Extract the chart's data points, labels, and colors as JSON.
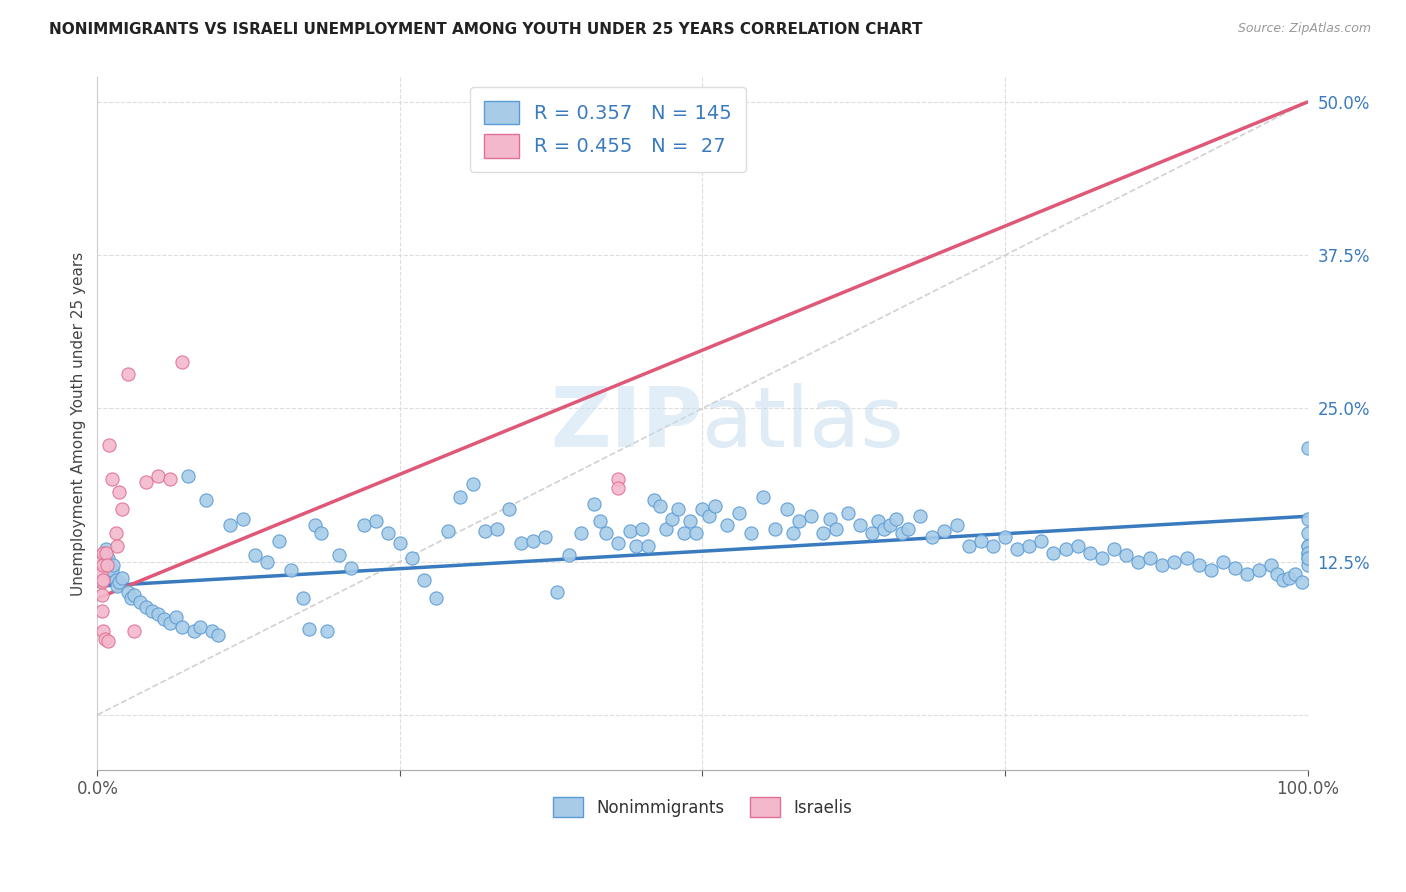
{
  "title": "NONIMMIGRANTS VS ISRAELI UNEMPLOYMENT AMONG YOUTH UNDER 25 YEARS CORRELATION CHART",
  "source": "Source: ZipAtlas.com",
  "ylabel_label": "Unemployment Among Youth under 25 years",
  "ylabel_ticks": [
    0.0,
    0.125,
    0.25,
    0.375,
    0.5
  ],
  "ylabel_tick_labels": [
    "",
    "12.5%",
    "25.0%",
    "37.5%",
    "50.0%"
  ],
  "watermark": "ZIPatlas",
  "legend_blue_R": 0.357,
  "legend_blue_N": 145,
  "legend_pink_R": 0.455,
  "legend_pink_N": 27,
  "legend_label_blue": "Nonimmigrants",
  "legend_label_pink": "Israelis",
  "blue_scatter_color": "#a8cce8",
  "blue_edge_color": "#5b9bd5",
  "pink_scatter_color": "#f4b8cd",
  "pink_edge_color": "#e07090",
  "trend_blue_color": "#3a7bbf",
  "trend_pink_color": "#e05878",
  "diag_color": "#cccccc",
  "grid_color": "#dddddd",
  "background_color": "#ffffff",
  "blue_points_x": [
    0.005,
    0.007,
    0.008,
    0.009,
    0.01,
    0.01,
    0.012,
    0.013,
    0.015,
    0.016,
    0.018,
    0.02,
    0.025,
    0.028,
    0.03,
    0.035,
    0.04,
    0.045,
    0.05,
    0.055,
    0.06,
    0.065,
    0.07,
    0.075,
    0.08,
    0.085,
    0.09,
    0.095,
    0.1,
    0.11,
    0.12,
    0.13,
    0.14,
    0.15,
    0.16,
    0.17,
    0.175,
    0.18,
    0.185,
    0.19,
    0.2,
    0.21,
    0.22,
    0.23,
    0.24,
    0.25,
    0.26,
    0.27,
    0.28,
    0.29,
    0.3,
    0.31,
    0.32,
    0.33,
    0.34,
    0.35,
    0.36,
    0.37,
    0.38,
    0.39,
    0.4,
    0.41,
    0.415,
    0.42,
    0.43,
    0.44,
    0.445,
    0.45,
    0.455,
    0.46,
    0.465,
    0.47,
    0.475,
    0.48,
    0.485,
    0.49,
    0.495,
    0.5,
    0.505,
    0.51,
    0.52,
    0.53,
    0.54,
    0.55,
    0.56,
    0.57,
    0.575,
    0.58,
    0.59,
    0.6,
    0.605,
    0.61,
    0.62,
    0.63,
    0.64,
    0.645,
    0.65,
    0.655,
    0.66,
    0.665,
    0.67,
    0.68,
    0.69,
    0.7,
    0.71,
    0.72,
    0.73,
    0.74,
    0.75,
    0.76,
    0.77,
    0.78,
    0.79,
    0.8,
    0.81,
    0.82,
    0.83,
    0.84,
    0.85,
    0.86,
    0.87,
    0.88,
    0.89,
    0.9,
    0.91,
    0.92,
    0.93,
    0.94,
    0.95,
    0.96,
    0.97,
    0.975,
    0.98,
    0.985,
    0.99,
    0.995,
    1.0,
    1.0,
    1.0,
    1.0,
    1.0,
    1.0,
    1.0,
    1.0,
    1.0,
    1.0
  ],
  "blue_points_y": [
    0.13,
    0.135,
    0.125,
    0.128,
    0.12,
    0.115,
    0.118,
    0.122,
    0.11,
    0.105,
    0.108,
    0.112,
    0.1,
    0.095,
    0.098,
    0.092,
    0.088,
    0.085,
    0.082,
    0.078,
    0.075,
    0.08,
    0.072,
    0.195,
    0.068,
    0.072,
    0.175,
    0.068,
    0.065,
    0.155,
    0.16,
    0.13,
    0.125,
    0.142,
    0.118,
    0.095,
    0.07,
    0.155,
    0.148,
    0.068,
    0.13,
    0.12,
    0.155,
    0.158,
    0.148,
    0.14,
    0.128,
    0.11,
    0.095,
    0.15,
    0.178,
    0.188,
    0.15,
    0.152,
    0.168,
    0.14,
    0.142,
    0.145,
    0.1,
    0.13,
    0.148,
    0.172,
    0.158,
    0.148,
    0.14,
    0.15,
    0.138,
    0.152,
    0.138,
    0.175,
    0.17,
    0.152,
    0.16,
    0.168,
    0.148,
    0.158,
    0.148,
    0.168,
    0.162,
    0.17,
    0.155,
    0.165,
    0.148,
    0.178,
    0.152,
    0.168,
    0.148,
    0.158,
    0.162,
    0.148,
    0.16,
    0.152,
    0.165,
    0.155,
    0.148,
    0.158,
    0.152,
    0.155,
    0.16,
    0.148,
    0.152,
    0.162,
    0.145,
    0.15,
    0.155,
    0.138,
    0.142,
    0.138,
    0.145,
    0.135,
    0.138,
    0.142,
    0.132,
    0.135,
    0.138,
    0.132,
    0.128,
    0.135,
    0.13,
    0.125,
    0.128,
    0.122,
    0.125,
    0.128,
    0.122,
    0.118,
    0.125,
    0.12,
    0.115,
    0.118,
    0.122,
    0.115,
    0.11,
    0.112,
    0.115,
    0.108,
    0.138,
    0.132,
    0.128,
    0.122,
    0.148,
    0.138,
    0.132,
    0.128,
    0.16,
    0.218
  ],
  "pink_points_x": [
    0.003,
    0.003,
    0.004,
    0.004,
    0.004,
    0.005,
    0.005,
    0.005,
    0.005,
    0.006,
    0.007,
    0.008,
    0.009,
    0.01,
    0.012,
    0.015,
    0.016,
    0.018,
    0.02,
    0.025,
    0.03,
    0.04,
    0.05,
    0.06,
    0.07,
    0.43,
    0.43
  ],
  "pink_points_y": [
    0.125,
    0.115,
    0.108,
    0.098,
    0.085,
    0.132,
    0.122,
    0.11,
    0.068,
    0.062,
    0.132,
    0.122,
    0.06,
    0.22,
    0.192,
    0.148,
    0.138,
    0.182,
    0.168,
    0.278,
    0.068,
    0.19,
    0.195,
    0.192,
    0.288,
    0.192,
    0.185
  ],
  "blue_trend_x": [
    0.0,
    1.0
  ],
  "blue_trend_y": [
    0.105,
    0.162
  ],
  "pink_trend_x": [
    0.0,
    1.0
  ],
  "pink_trend_y": [
    0.095,
    0.5
  ],
  "diag_line_x": [
    0.0,
    1.0
  ],
  "diag_line_y": [
    0.0,
    0.5
  ],
  "xlim": [
    0.0,
    1.0
  ],
  "ylim": [
    -0.045,
    0.52
  ]
}
